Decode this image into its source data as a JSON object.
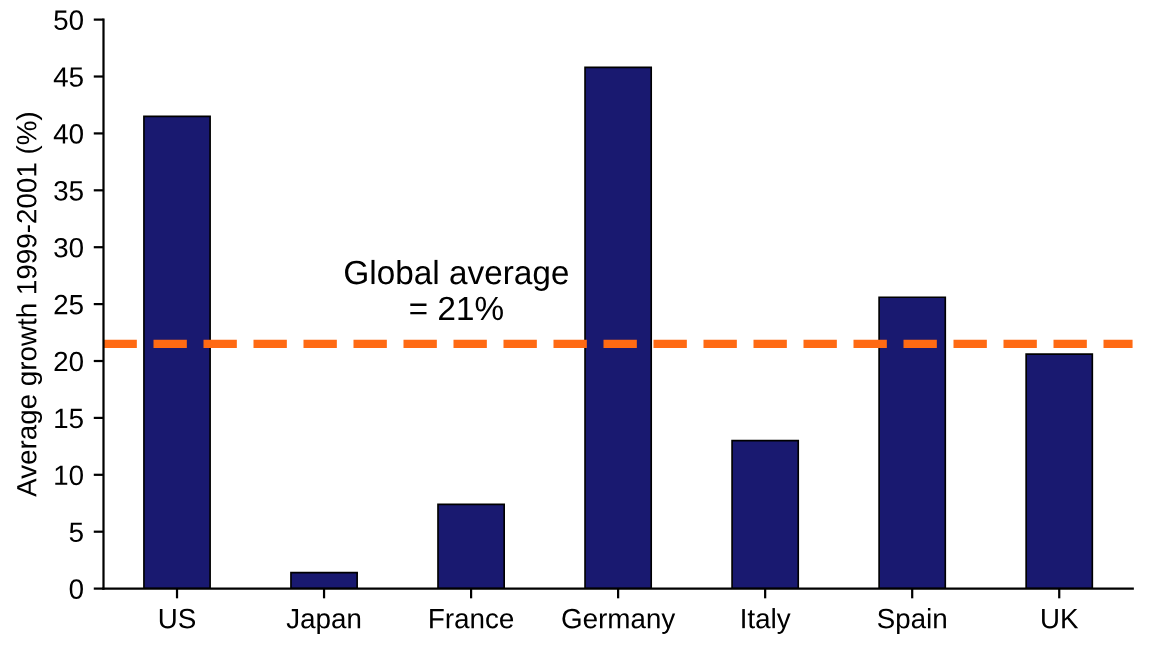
{
  "chart_data": {
    "type": "bar",
    "ylabel": "Average growth 1999-2001 (%)",
    "categories": [
      "US",
      "Japan",
      "France",
      "Germany",
      "Italy",
      "Spain",
      "UK"
    ],
    "values": [
      41.5,
      1.4,
      7.4,
      45.8,
      13,
      25.6,
      20.6
    ],
    "color": "#191970",
    "ylim": [
      0,
      50
    ],
    "yticks": [
      0,
      5,
      10,
      15,
      20,
      25,
      30,
      35,
      40,
      45,
      50
    ],
    "ref_lines": [
      {
        "axis": "y",
        "value": 21.5,
        "label": "Global average\n= 21%",
        "color": "#ff6a13",
        "line_style": "dashed"
      }
    ],
    "grid": false
  }
}
